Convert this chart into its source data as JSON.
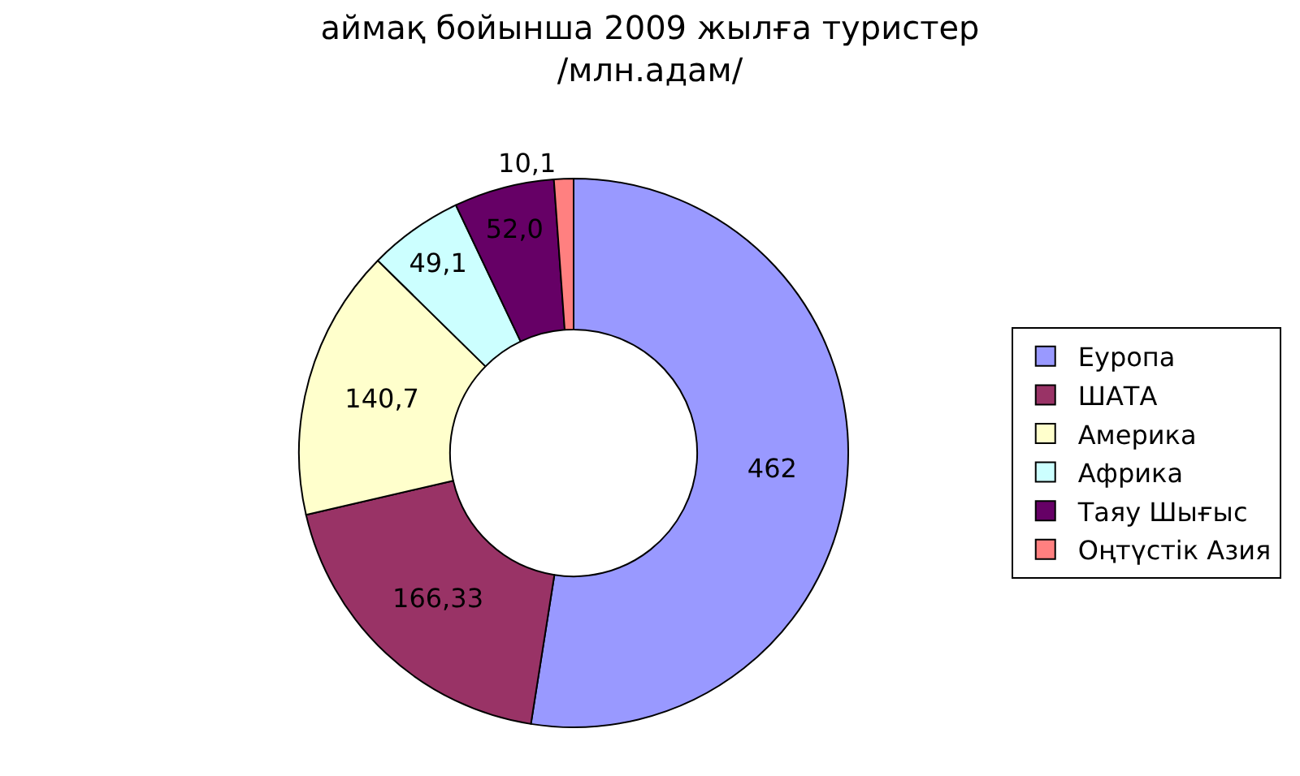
{
  "chart_data": {
    "type": "donut",
    "title": "аймақ бойынша 2009 жылға туристер\n/млн.адам/",
    "categories": [
      "Еуропа",
      "ШАТА",
      "Америка",
      "Африка",
      "Таяу Шығыс",
      "Оңтүстік Азия"
    ],
    "values": [
      462,
      166.33,
      140.7,
      49.1,
      52.0,
      10.1
    ],
    "value_labels": [
      "462",
      "166,33",
      "140,7",
      "49,1",
      "52,0",
      "10,1"
    ],
    "colors": [
      "#9999ff",
      "#993366",
      "#ffffcc",
      "#ccffff",
      "#660066",
      "#ff8080"
    ],
    "legend": "right"
  }
}
